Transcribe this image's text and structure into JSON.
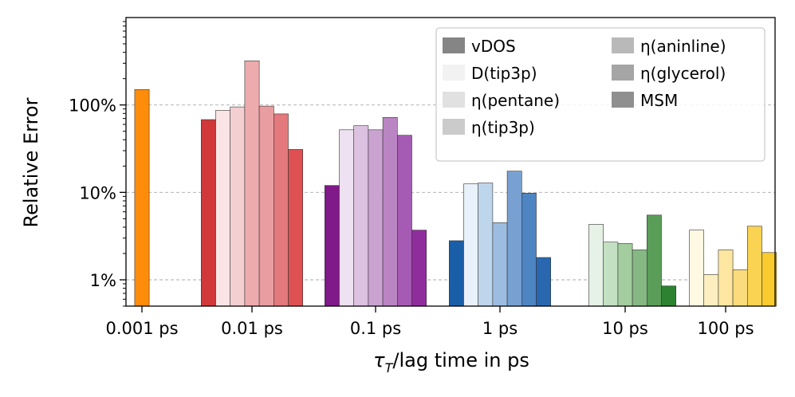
{
  "chart_data": {
    "type": "bar",
    "yscale": "log",
    "ylim_percent": [
      0.5,
      1000
    ],
    "ylabel": "Relative Error",
    "xlabel_prefix": "τ",
    "xlabel_subscript": "T",
    "xlabel_suffix": "/lag time in ps",
    "categories": [
      "0.001 ps",
      "0.01 ps",
      "0.1 ps",
      "1 ps",
      "10 ps",
      "100 ps"
    ],
    "yticks": [
      {
        "value": 1,
        "label": "1%"
      },
      {
        "value": 10,
        "label": "10%"
      },
      {
        "value": 100,
        "label": "100%"
      }
    ],
    "series": [
      {
        "name": "vDOS",
        "values": [
          null,
          68,
          12,
          2.8,
          null,
          null
        ]
      },
      {
        "name": "D(tip3p)",
        "values": [
          null,
          87,
          52,
          12.5,
          4.3,
          3.7
        ]
      },
      {
        "name": "η(pentane)",
        "values": [
          null,
          95,
          58,
          12.8,
          2.7,
          1.15
        ]
      },
      {
        "name": "η(tip3p)",
        "values": [
          null,
          320,
          52,
          4.5,
          2.6,
          2.2
        ]
      },
      {
        "name": "η(aninline)",
        "values": [
          null,
          97,
          72,
          17.5,
          2.2,
          1.3
        ]
      },
      {
        "name": "η(glycerol)",
        "values": [
          null,
          79,
          45,
          9.8,
          5.5,
          4.1
        ]
      },
      {
        "name": "MSM",
        "values": [
          null,
          31,
          3.7,
          1.8,
          0.85,
          2.05
        ]
      }
    ],
    "single_bars": [
      {
        "category": "0.001 ps",
        "value": 150
      }
    ],
    "colors": {
      "0.001 ps": [
        "#ff8c0a"
      ],
      "0.01 ps": [
        "#d1383a",
        "#fbe4e5",
        "#f4cfd1",
        "#eeabad",
        "#e89ea0",
        "#e3797c",
        "#df5053"
      ],
      "0.1 ps": [
        "#7f1a88",
        "#eee1f1",
        "#ddc1e1",
        "#caa3d1",
        "#ba85c3",
        "#a55bb3",
        "#902d9d"
      ],
      "1 ps": [
        "#1b5ea8",
        "#e9f1fa",
        "#bed6ec",
        "#9dbde0",
        "#78a1d1",
        "#4d84c2",
        "#2967b1"
      ],
      "10 ps": [
        "#2a7a2a",
        "#e6f2e6",
        "#c4e0c2",
        "#a3cc9f",
        "#86b883",
        "#5a9d58",
        "#2c8230"
      ],
      "100 ps": [
        "#f5c611",
        "#fff8e2",
        "#fdeec0",
        "#fce6a0",
        "#fbdc7c",
        "#fad352",
        "#f9cb2c"
      ]
    },
    "legend": {
      "location": "top-right",
      "columns": 2,
      "entries": [
        {
          "label": "vDOS",
          "color": "#858585"
        },
        {
          "label": "D(tip3p)",
          "color": "#f2f2f2"
        },
        {
          "label": "η(pentane)",
          "color": "#e1e1e1"
        },
        {
          "label": "η(tip3p)",
          "color": "#cbcbcb"
        },
        {
          "label": "η(aninline)",
          "color": "#b9b9b9"
        },
        {
          "label": "η(glycerol)",
          "color": "#a5a5a5"
        },
        {
          "label": "MSM",
          "color": "#8f8f8f"
        }
      ]
    }
  }
}
